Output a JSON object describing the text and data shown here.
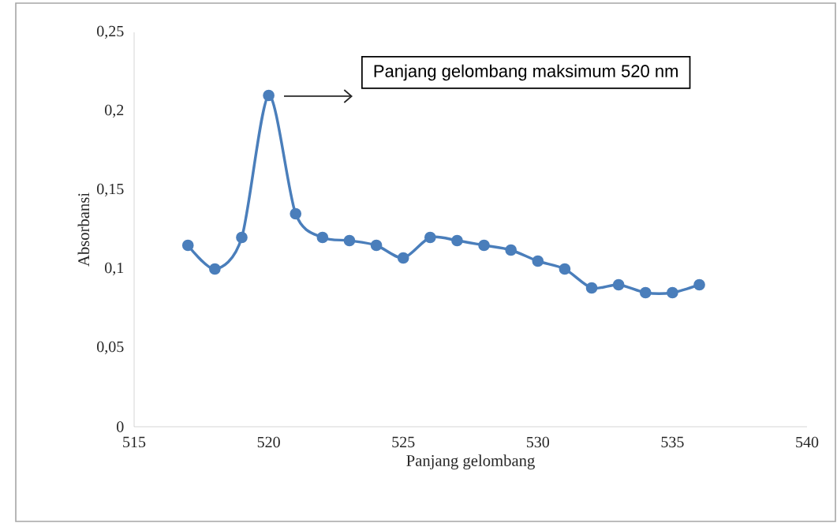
{
  "chart_data": {
    "type": "line",
    "xlabel": "Panjang gelombang",
    "ylabel": "Absorbansi",
    "x": [
      517,
      518,
      519,
      520,
      521,
      522,
      523,
      524,
      525,
      526,
      527,
      528,
      529,
      530,
      531,
      532,
      533,
      534,
      535,
      536
    ],
    "series": [
      {
        "color": "#4a7ebb",
        "values": [
          0.115,
          0.1,
          0.12,
          0.21,
          0.135,
          0.12,
          0.118,
          0.115,
          0.107,
          0.12,
          0.118,
          0.115,
          0.112,
          0.105,
          0.1,
          0.088,
          0.09,
          0.085,
          0.085,
          0.09
        ]
      }
    ],
    "xlim": [
      515,
      540
    ],
    "xticks": [
      515,
      520,
      525,
      530,
      535,
      540
    ],
    "ylim": [
      0,
      0.25
    ],
    "yticks": [
      {
        "value": 0,
        "label": "0"
      },
      {
        "value": 0.05,
        "label": "0,05"
      },
      {
        "value": 0.1,
        "label": "0,1"
      },
      {
        "value": 0.15,
        "label": "0,15"
      },
      {
        "value": 0.2,
        "label": "0,2"
      },
      {
        "value": 0.25,
        "label": "0,25"
      }
    ],
    "marker": "circle",
    "line_style": "solid",
    "grid": false,
    "annotations": [
      "Panjang gelombang maksimum 520 nm"
    ]
  }
}
